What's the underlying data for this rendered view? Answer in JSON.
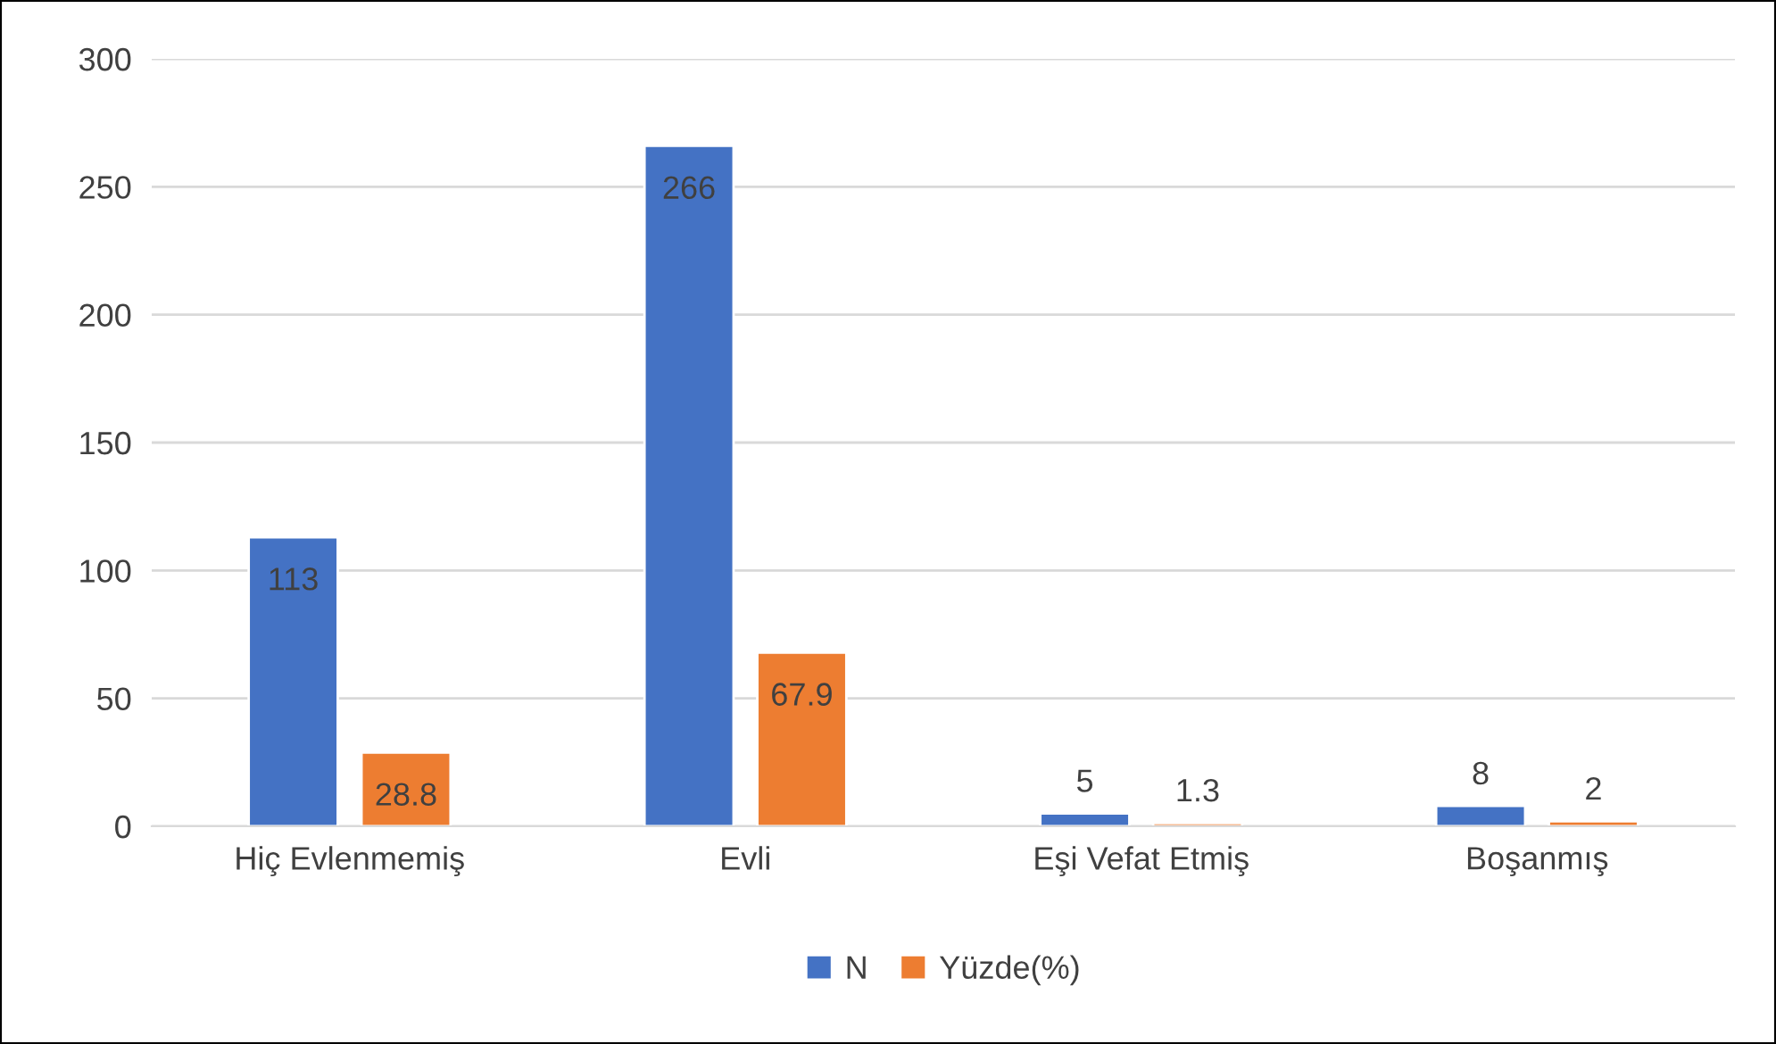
{
  "chart_data": {
    "type": "bar",
    "categories": [
      "Hiç Evlenmemiş",
      "Evli",
      "Eşi Vefat Etmiş",
      "Boşanmış"
    ],
    "series": [
      {
        "name": "N",
        "color": "#4472c4",
        "values": [
          113,
          266,
          5,
          8
        ]
      },
      {
        "name": "Yüzde(%)",
        "color": "#ed7d31",
        "values": [
          28.8,
          67.9,
          1.3,
          2
        ]
      }
    ],
    "ylim": [
      0,
      300
    ],
    "yticks": [
      0,
      50,
      100,
      150,
      200,
      250,
      300
    ],
    "grid": "y",
    "legend": "bottom",
    "data_labels": true
  }
}
